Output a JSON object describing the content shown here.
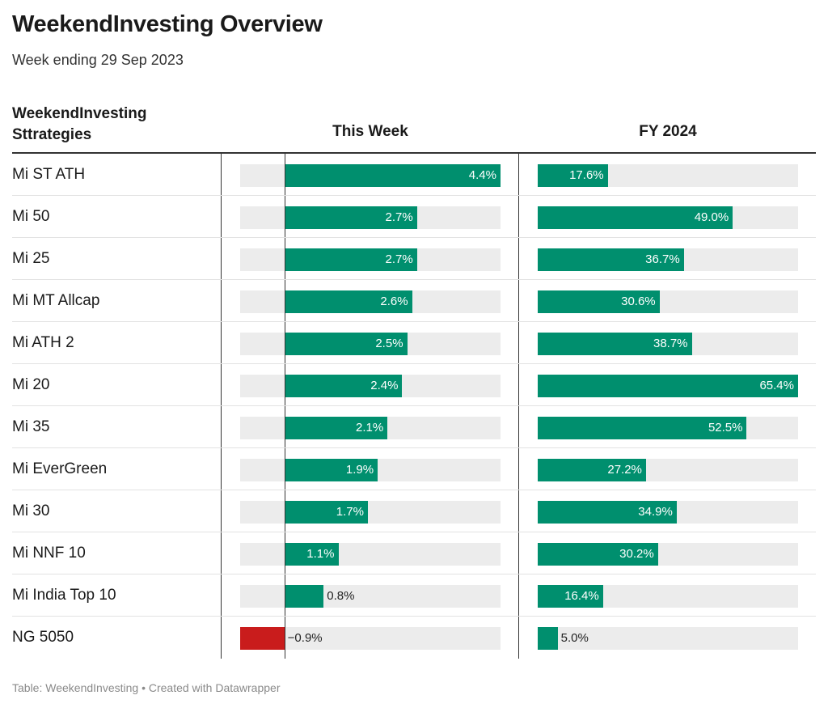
{
  "header": {
    "title": "WeekendInvesting Overview",
    "subtitle": "Week ending 29 Sep 2023"
  },
  "columns": {
    "strategies": "WeekendInvesting Sttrategies",
    "this_week": "This Week",
    "fy": "FY 2024"
  },
  "footer": "Table: WeekendInvesting • Created with Datawrapper",
  "colors": {
    "positive": "#008f6e",
    "negative": "#c91c1c",
    "track": "#ececec"
  },
  "chart_data": {
    "type": "table",
    "categories": [
      "Mi ST ATH",
      "Mi 50",
      "Mi 25",
      "Mi MT Allcap",
      "Mi ATH 2",
      "Mi 20",
      "Mi 35",
      "Mi EverGreen",
      "Mi 30",
      "Mi NNF 10",
      "Mi India Top 10",
      "NG 5050"
    ],
    "series": [
      {
        "name": "This Week",
        "values": [
          4.4,
          2.7,
          2.7,
          2.6,
          2.5,
          2.4,
          2.1,
          1.9,
          1.7,
          1.1,
          0.8,
          -0.9
        ],
        "labels": [
          "4.4%",
          "2.7%",
          "2.7%",
          "2.6%",
          "2.5%",
          "2.4%",
          "2.1%",
          "1.9%",
          "1.7%",
          "1.1%",
          "0.8%",
          "−0.9%"
        ],
        "range": [
          -0.9,
          4.4
        ]
      },
      {
        "name": "FY 2024",
        "values": [
          17.6,
          49.0,
          36.7,
          30.6,
          38.7,
          65.4,
          52.5,
          27.2,
          34.9,
          30.2,
          16.4,
          5.0
        ],
        "labels": [
          "17.6%",
          "49.0%",
          "36.7%",
          "30.6%",
          "38.7%",
          "65.4%",
          "52.5%",
          "27.2%",
          "34.9%",
          "30.2%",
          "16.4%",
          "5.0%"
        ],
        "range": [
          0,
          65.4
        ]
      }
    ]
  }
}
